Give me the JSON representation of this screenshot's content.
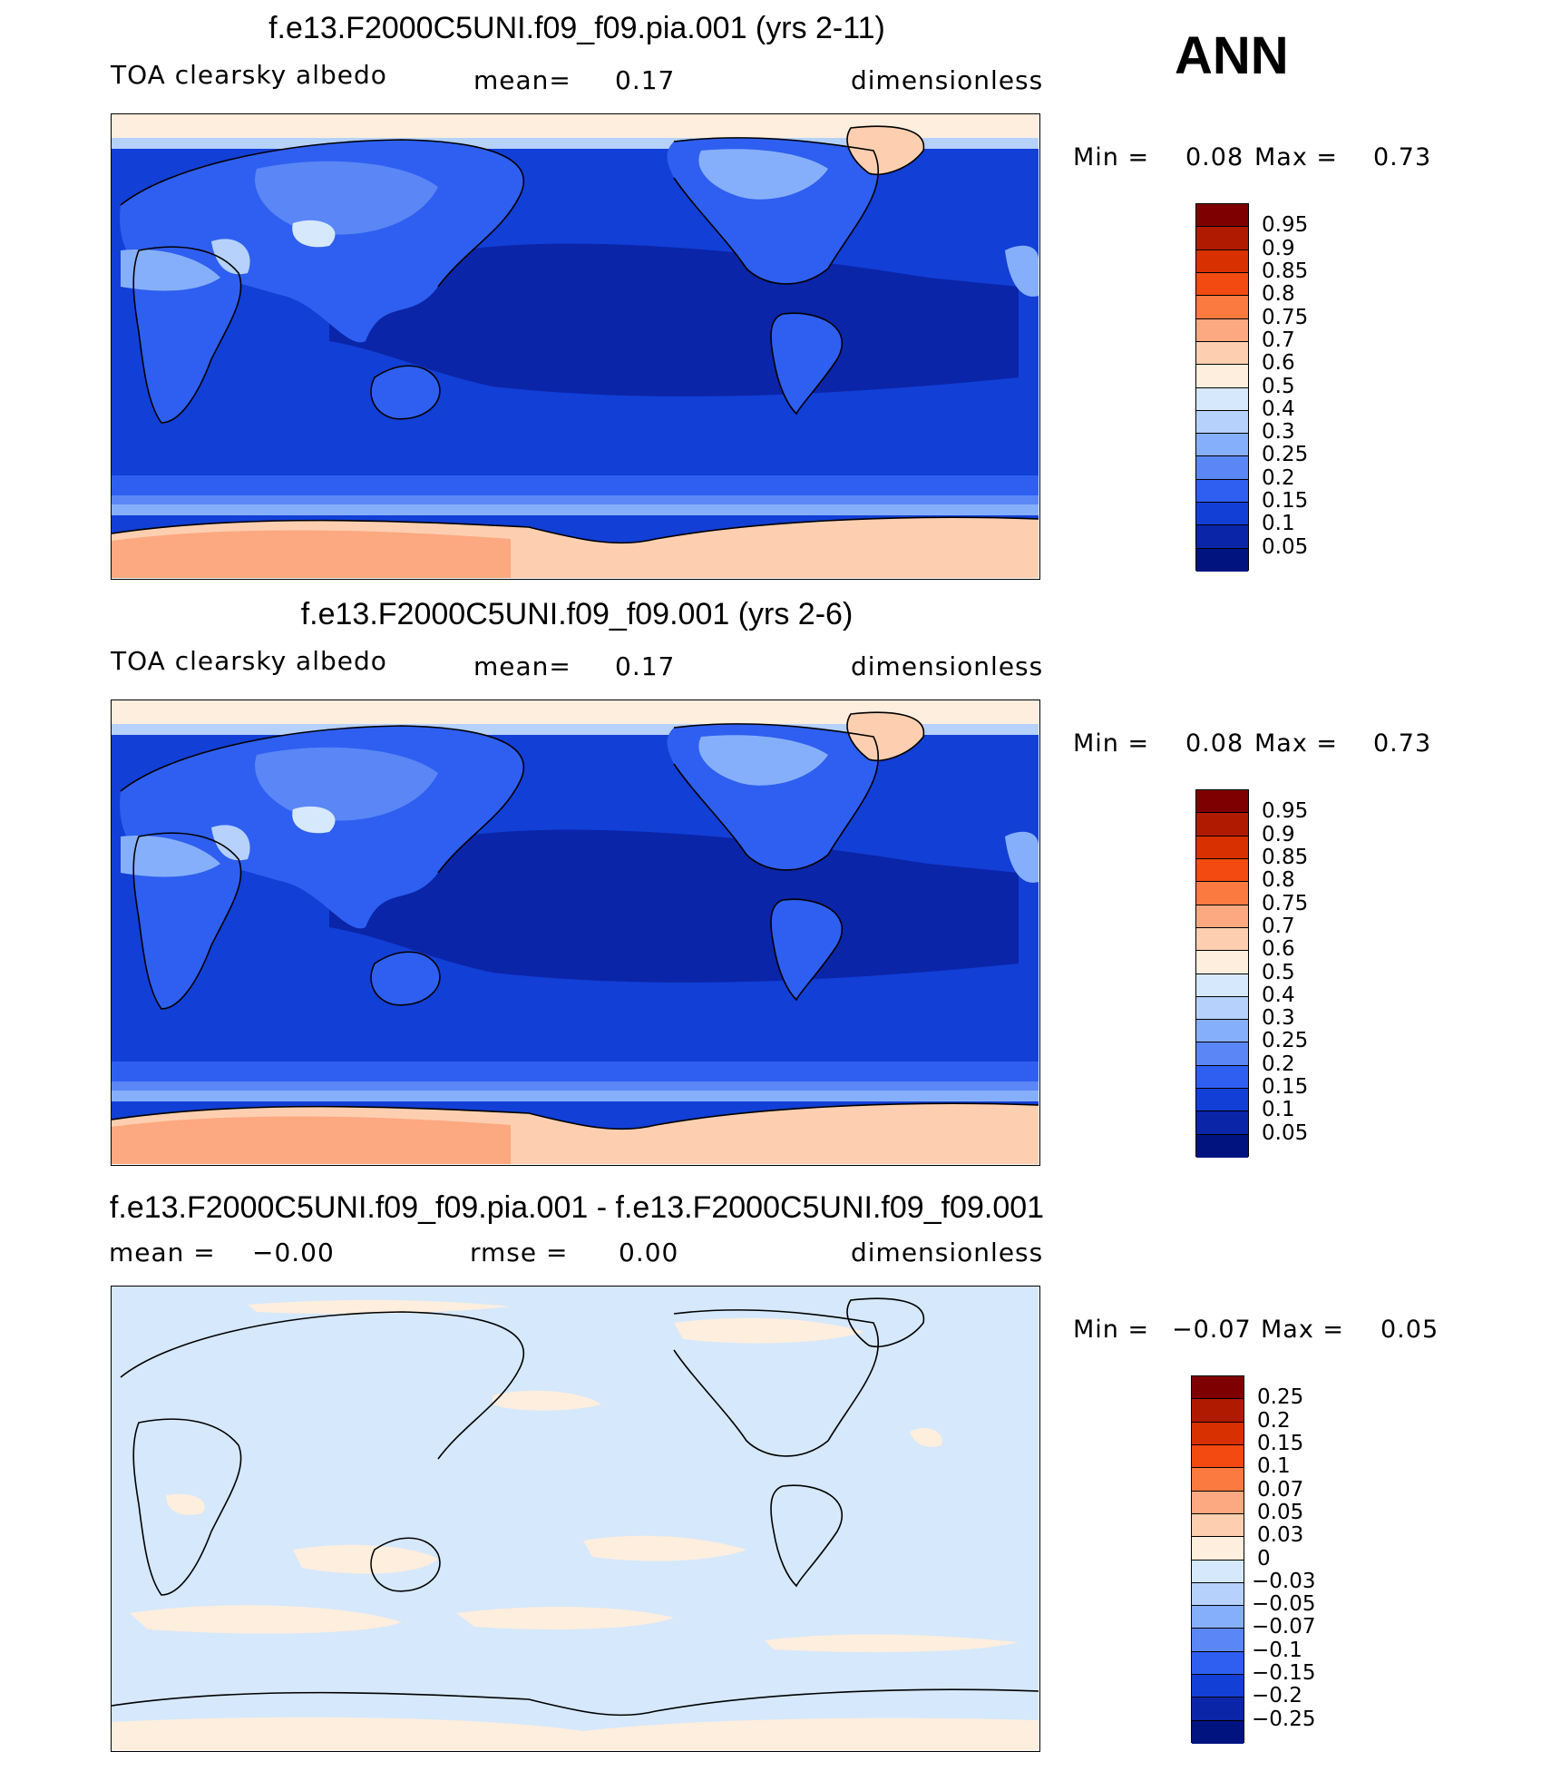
{
  "season": "ANN",
  "panels": [
    {
      "title": "f.e13.F2000C5UNI.f09_f09.pia.001 (yrs 2-11)",
      "variable": "TOA clearsky albedo",
      "stat1_label": "mean=",
      "stat1_value": "0.17",
      "units": "dimensionless",
      "min_label": "Min =",
      "min_value": "0.08",
      "max_label": "Max =",
      "max_value": "0.73",
      "colorbar": {
        "labels": [
          "0.95",
          "0.9",
          "0.85",
          "0.8",
          "0.75",
          "0.7",
          "0.6",
          "0.5",
          "0.4",
          "0.3",
          "0.25",
          "0.2",
          "0.15",
          "0.1",
          "0.05"
        ],
        "colors": [
          "#7f0000",
          "#b01a00",
          "#d93000",
          "#f24a10",
          "#fb7a40",
          "#fca880",
          "#fdcfb0",
          "#fdeede",
          "#d6e8fb",
          "#b5d1fc",
          "#86affb",
          "#5a86f6",
          "#2e5ff0",
          "#123fd6",
          "#0a25a8",
          "#00137f"
        ]
      }
    },
    {
      "title": "f.e13.F2000C5UNI.f09_f09.001 (yrs 2-6)",
      "variable": "TOA clearsky albedo",
      "stat1_label": "mean=",
      "stat1_value": "0.17",
      "units": "dimensionless",
      "min_label": "Min =",
      "min_value": "0.08",
      "max_label": "Max =",
      "max_value": "0.73",
      "colorbar": {
        "labels": [
          "0.95",
          "0.9",
          "0.85",
          "0.8",
          "0.75",
          "0.7",
          "0.6",
          "0.5",
          "0.4",
          "0.3",
          "0.25",
          "0.2",
          "0.15",
          "0.1",
          "0.05"
        ],
        "colors": [
          "#7f0000",
          "#b01a00",
          "#d93000",
          "#f24a10",
          "#fb7a40",
          "#fca880",
          "#fdcfb0",
          "#fdeede",
          "#d6e8fb",
          "#b5d1fc",
          "#86affb",
          "#5a86f6",
          "#2e5ff0",
          "#123fd6",
          "#0a25a8",
          "#00137f"
        ]
      }
    },
    {
      "title": "f.e13.F2000C5UNI.f09_f09.pia.001 - f.e13.F2000C5UNI.f09_f09.001",
      "stat1_label": "mean =",
      "stat1_value": "−0.00",
      "stat2_label": "rmse =",
      "stat2_value": "0.00",
      "units": "dimensionless",
      "min_label": "Min =",
      "min_value": "−0.07",
      "max_label": "Max =",
      "max_value": "0.05",
      "colorbar": {
        "labels": [
          "0.25",
          "0.2",
          "0.15",
          "0.1",
          "0.07",
          "0.05",
          "0.03",
          "0",
          "−0.03",
          "−0.05",
          "−0.07",
          "−0.1",
          "−0.15",
          "−0.2",
          "−0.25"
        ],
        "colors": [
          "#7f0000",
          "#b01a00",
          "#d93000",
          "#f24a10",
          "#fb7a40",
          "#fca880",
          "#fdcfb0",
          "#fdeede",
          "#d6e8fb",
          "#b5d1fc",
          "#86affb",
          "#5a86f6",
          "#2e5ff0",
          "#123fd6",
          "#0a25a8",
          "#00137f"
        ]
      }
    }
  ]
}
